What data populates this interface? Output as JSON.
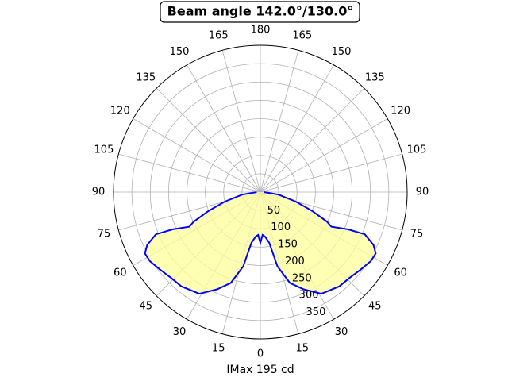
{
  "chart_data": {
    "type": "polar",
    "title": "Beam angle 142.0°/130.0°",
    "xlabel": "IMax 195 cd",
    "rlim": [
      0,
      400
    ],
    "rticks": [
      50,
      100,
      150,
      200,
      250,
      300,
      350
    ],
    "thetaticks": [
      0,
      15,
      30,
      45,
      60,
      75,
      90,
      105,
      120,
      135,
      150,
      165,
      180,
      {
        "value": 195,
        "label": "165"
      },
      {
        "value": 210,
        "label": "150"
      },
      {
        "value": 225,
        "label": "135"
      },
      {
        "value": 240,
        "label": "120"
      },
      {
        "value": 255,
        "label": "105"
      },
      {
        "value": 270,
        "label": "90"
      },
      {
        "value": 285,
        "label": "75"
      },
      {
        "value": 300,
        "label": "60"
      },
      {
        "value": 315,
        "label": "45"
      },
      {
        "value": 330,
        "label": "30"
      },
      {
        "value": 345,
        "label": "15"
      }
    ],
    "grid": true,
    "series": [
      {
        "color": "#0000ff",
        "fill": "#ffff99",
        "theta": [
          -90,
          -82,
          -75,
          -70,
          -66,
          -64,
          -67,
          -68,
          -65,
          -62,
          -58,
          -52,
          -46,
          -40,
          -31,
          -24,
          -18,
          -13,
          -10,
          -6,
          -3,
          0,
          3,
          6,
          10,
          13,
          18,
          24,
          31,
          40,
          46,
          52,
          58,
          62,
          65,
          68,
          67,
          64,
          66,
          70,
          75,
          82,
          90
        ],
        "r": [
          10,
          50,
          100,
          150,
          199,
          215,
          260,
          307,
          340,
          356,
          355,
          345,
          337,
          335,
          323,
          290,
          260,
          208,
          140,
          122,
          117,
          138,
          117,
          122,
          140,
          208,
          260,
          290,
          323,
          335,
          337,
          345,
          355,
          356,
          340,
          307,
          260,
          215,
          199,
          150,
          100,
          50,
          10
        ]
      }
    ]
  }
}
